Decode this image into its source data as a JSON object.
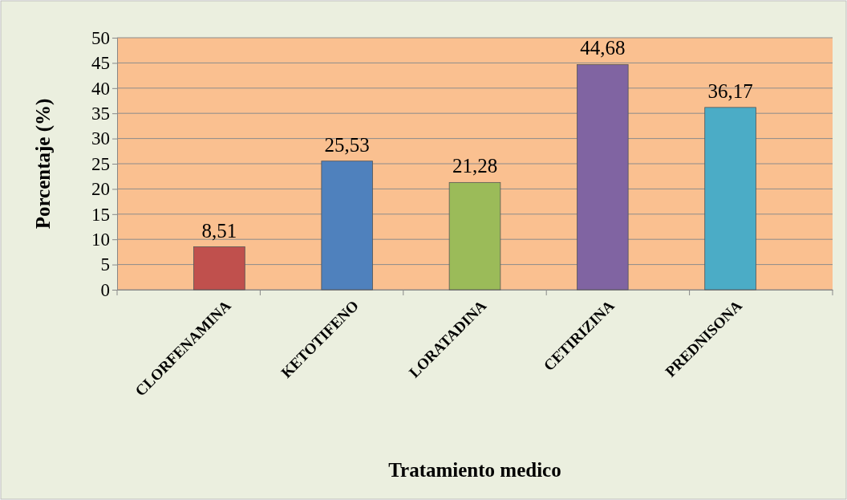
{
  "chart_data": {
    "type": "bar",
    "xlabel": "Tratamiento medico",
    "ylabel": "Porcentaje (%)",
    "categories": [
      "CLORFENAMINA",
      "KETOTIFENO",
      "LORATADINA",
      "CETIRIZINA",
      "PREDNISONA"
    ],
    "values": [
      8.51,
      25.53,
      21.28,
      44.68,
      36.17
    ],
    "colors": [
      "#c0504d",
      "#4f81bd",
      "#9bbb59",
      "#8064a2",
      "#4bacc6"
    ],
    "value_labels": [
      "8,51",
      "25,53",
      "21,28",
      "44,68",
      "36,17"
    ],
    "ylim": [
      0,
      50
    ],
    "yticks": [
      0,
      5,
      10,
      15,
      20,
      25,
      30,
      35,
      40,
      45,
      50
    ],
    "grid": "y"
  }
}
